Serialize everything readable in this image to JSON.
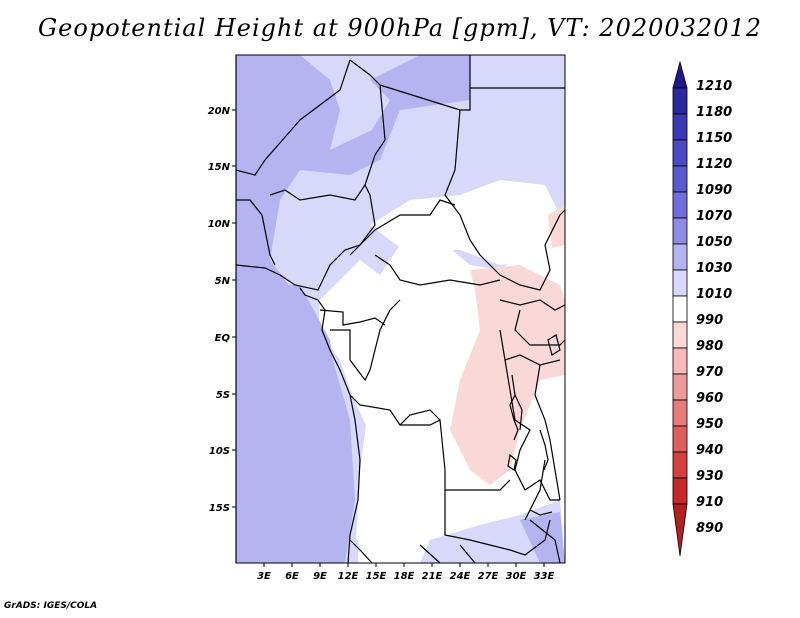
{
  "title": "Geopotential Height at 900hPa [gpm], VT: 2020032012",
  "credit": "GrADS: IGES/COLA",
  "map": {
    "lat_labels": [
      "20N",
      "15N",
      "10N",
      "5N",
      "EQ",
      "5S",
      "10S",
      "15S"
    ],
    "lon_labels": [
      "3E",
      "6E",
      "9E",
      "12E",
      "15E",
      "18E",
      "21E",
      "24E",
      "27E",
      "30E",
      "33E"
    ]
  },
  "colorbar": {
    "labels": [
      "1210",
      "1180",
      "1150",
      "1120",
      "1090",
      "1070",
      "1050",
      "1030",
      "1010",
      "990",
      "980",
      "970",
      "960",
      "950",
      "940",
      "930",
      "910",
      "890"
    ],
    "colors": [
      "#1f1a8c",
      "#2a2aa0",
      "#3a3ab4",
      "#4a4ac4",
      "#5a5ad0",
      "#6e6edc",
      "#8c8ce6",
      "#b4b4f0",
      "#d8d8fa",
      "#ffffff",
      "#fbd8d8",
      "#f6b8b8",
      "#ee9a9a",
      "#e67c7c",
      "#de5e5e",
      "#d44040",
      "#c62828",
      "#b22020"
    ]
  }
}
